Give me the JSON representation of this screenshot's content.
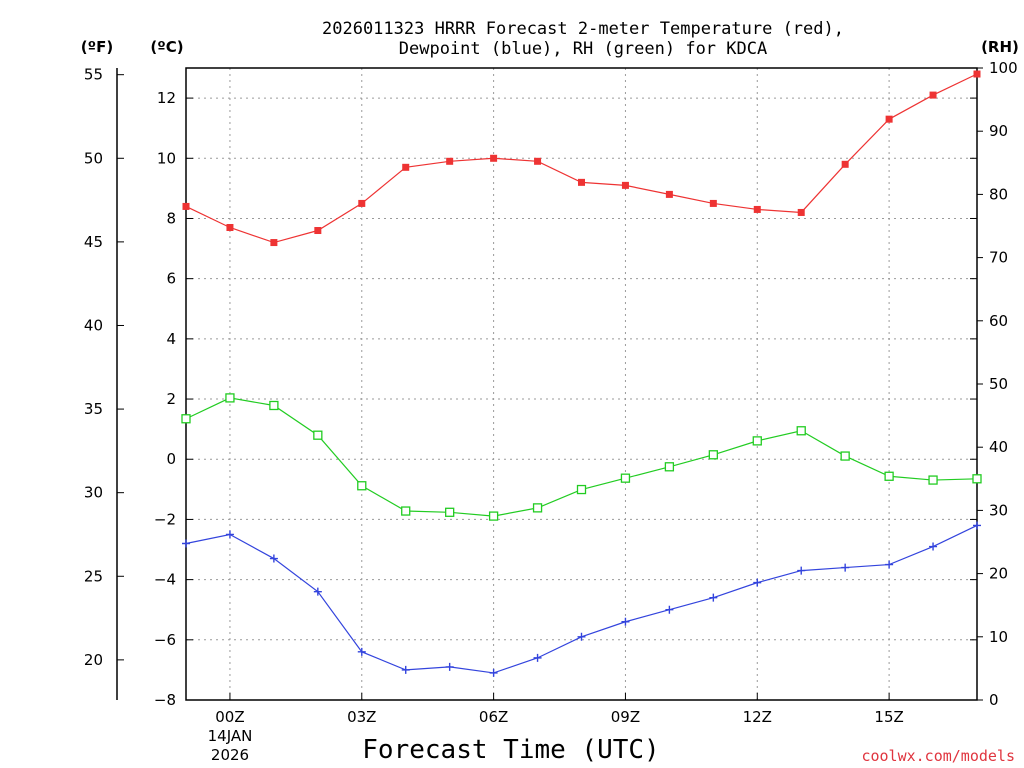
{
  "chart_data": {
    "type": "line",
    "title_line1": "2026011323 HRRR Forecast 2-meter Temperature (red),",
    "title_line2": "Dewpoint (blue), RH (green) for KDCA",
    "xlabel": "Forecast Time (UTC)",
    "date_label": [
      "14JAN",
      "2026"
    ],
    "credit": "coolwx.com/models",
    "axes": {
      "fahrenheit": {
        "label": "(ºF)",
        "ticks": [
          20,
          25,
          30,
          35,
          40,
          45,
          50,
          55
        ],
        "range": [
          17.6,
          55.4
        ]
      },
      "celsius": {
        "label": "(ºC)",
        "ticks": [
          -8,
          -6,
          -4,
          -2,
          0,
          2,
          4,
          6,
          8,
          10,
          12
        ],
        "range": [
          -8,
          13
        ]
      },
      "rh": {
        "label": "(RH)",
        "ticks": [
          0,
          10,
          20,
          30,
          40,
          50,
          60,
          70,
          80,
          90,
          100
        ],
        "range": [
          0,
          100
        ]
      }
    },
    "x": {
      "range": [
        -1,
        17
      ],
      "ticks": [
        {
          "v": 0,
          "label": "00Z"
        },
        {
          "v": 3,
          "label": "03Z"
        },
        {
          "v": 6,
          "label": "06Z"
        },
        {
          "v": 9,
          "label": "09Z"
        },
        {
          "v": 12,
          "label": "12Z"
        },
        {
          "v": 15,
          "label": "15Z"
        }
      ],
      "hours": [
        -1,
        0,
        1,
        2,
        3,
        4,
        5,
        6,
        7,
        8,
        9,
        10,
        11,
        12,
        13,
        14,
        15,
        16,
        17
      ]
    },
    "series": [
      {
        "name": "Temperature",
        "units": "C",
        "axis": "celsius",
        "color": "#ee3333",
        "marker": "filled-square",
        "values": [
          8.4,
          7.7,
          7.2,
          7.6,
          8.5,
          9.7,
          9.9,
          10.0,
          9.9,
          9.2,
          9.1,
          8.8,
          8.5,
          8.3,
          8.2,
          9.8,
          11.3,
          12.1,
          12.8
        ]
      },
      {
        "name": "Dewpoint",
        "units": "C",
        "axis": "celsius",
        "color": "#3344dd",
        "marker": "plus",
        "values": [
          -2.8,
          -2.5,
          -3.3,
          -4.4,
          -6.4,
          -7.0,
          -6.9,
          -7.1,
          -6.6,
          -5.9,
          -5.4,
          -5.0,
          -4.6,
          -4.1,
          -3.7,
          -3.6,
          -3.5,
          -2.9,
          -2.2
        ]
      },
      {
        "name": "RH",
        "units": "%",
        "axis": "rh",
        "color": "#22cc22",
        "marker": "open-square",
        "values": [
          44.5,
          47.8,
          46.6,
          41.9,
          33.9,
          29.9,
          29.7,
          29.1,
          30.4,
          33.3,
          35.1,
          36.9,
          38.8,
          41.0,
          42.6,
          38.6,
          35.4,
          34.8,
          35.0
        ]
      }
    ]
  }
}
